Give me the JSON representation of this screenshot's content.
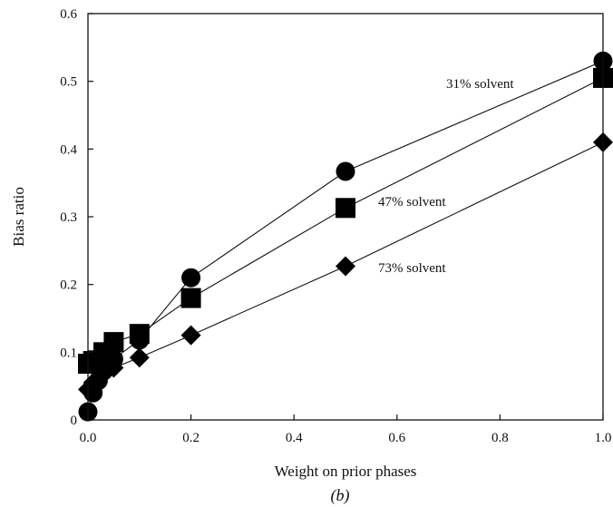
{
  "chart_data": {
    "type": "line",
    "xlabel": "Weight on prior phases",
    "ylabel": "Bias ratio",
    "caption": "(b)",
    "xlim": [
      0,
      1
    ],
    "ylim": [
      0,
      0.6
    ],
    "xticks": [
      "0.0",
      "0.2",
      "0.4",
      "0.6",
      "0.8",
      "1.0"
    ],
    "yticks": [
      "0",
      "0.1",
      "0.2",
      "0.3",
      "0.4",
      "0.5",
      "0.6"
    ],
    "grid": false,
    "legend": "none",
    "series": [
      {
        "name": "31% solvent",
        "marker": "circle",
        "x": [
          0,
          0.01,
          0.02,
          0.03,
          0.05,
          0.1,
          0.2,
          0.5,
          1.0
        ],
        "y": [
          0.012,
          0.04,
          0.058,
          0.072,
          0.09,
          0.118,
          0.21,
          0.367,
          0.53
        ]
      },
      {
        "name": "47% solvent",
        "marker": "square",
        "x": [
          0,
          0.01,
          0.02,
          0.03,
          0.05,
          0.1,
          0.2,
          0.5,
          1.0
        ],
        "y": [
          0.083,
          0.087,
          0.088,
          0.1,
          0.115,
          0.127,
          0.18,
          0.313,
          0.505
        ]
      },
      {
        "name": "73% solvent",
        "marker": "diamond",
        "x": [
          0,
          0.01,
          0.02,
          0.03,
          0.05,
          0.1,
          0.2,
          0.5,
          1.0
        ],
        "y": [
          0.045,
          0.055,
          0.062,
          0.07,
          0.077,
          0.092,
          0.125,
          0.227,
          0.41
        ]
      }
    ],
    "annotations": [
      "31% solvent",
      "47% solvent",
      "73% solvent"
    ]
  }
}
